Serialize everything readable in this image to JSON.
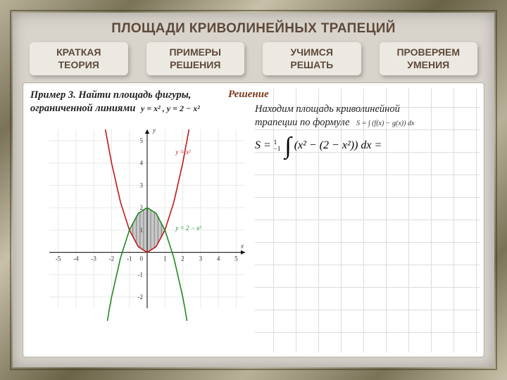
{
  "title": "ПЛОЩАДИ КРИВОЛИНЕЙНЫХ ТРАПЕЦИЙ",
  "tabs": [
    {
      "line1": "КРАТКАЯ",
      "line2": "ТЕОРИЯ"
    },
    {
      "line1": "ПРИМЕРЫ",
      "line2": "РЕШЕНИЯ"
    },
    {
      "line1": "УЧИМСЯ",
      "line2": "РЕШАТЬ"
    },
    {
      "line1": "ПРОВЕРЯЕМ",
      "line2": "УМЕНИЯ"
    }
  ],
  "problem": {
    "label": "Пример 3.",
    "text_a": "Найти площадь фигуры,",
    "text_b": "ограниченной линиями",
    "eq": "y = x² ,  y = 2 − x²"
  },
  "solution": {
    "title": "Решение",
    "line1": "Находим площадь криволинейной",
    "line2": "трапеции по формуле",
    "area_formula_small": "S = ∫ (f(x) − g(x)) dx",
    "big_formula_head": "S =",
    "big_formula_upper": "1",
    "big_formula_lower": "−1",
    "big_formula_body": "(x² − (2 − x²)) dx ="
  },
  "chart": {
    "type": "line",
    "xlim": [
      -5.5,
      5.5
    ],
    "ylim": [
      -2.5,
      5.5
    ],
    "xticks": [
      -5,
      -4,
      -3,
      -2,
      -1,
      0,
      1,
      2,
      3,
      4,
      5
    ],
    "yticks": [
      -2,
      -1,
      1,
      2,
      3,
      4,
      5
    ],
    "origin_label": "0",
    "x_axis_label": "x",
    "y_axis_label": "y",
    "series": [
      {
        "name": "y = x²",
        "color": "#c01818",
        "label_pos": [
          1.6,
          4.4
        ],
        "points": [
          [
            -2.35,
            5.5
          ],
          [
            -2,
            4
          ],
          [
            -1.5,
            2.25
          ],
          [
            -1,
            1
          ],
          [
            -0.5,
            0.25
          ],
          [
            0,
            0
          ],
          [
            0.5,
            0.25
          ],
          [
            1,
            1
          ],
          [
            1.5,
            2.25
          ],
          [
            2,
            4
          ],
          [
            2.35,
            5.5
          ]
        ]
      },
      {
        "name": "y = 2 − x²",
        "color": "#1f8a1f",
        "label_pos": [
          1.6,
          1.0
        ],
        "points": [
          [
            -2.9,
            -6.4
          ],
          [
            -2.12,
            -2.5
          ],
          [
            -2,
            -2
          ],
          [
            -1.5,
            -0.25
          ],
          [
            -1,
            1
          ],
          [
            -0.5,
            1.75
          ],
          [
            0,
            2
          ],
          [
            0.5,
            1.75
          ],
          [
            1,
            1
          ],
          [
            1.5,
            -0.25
          ],
          [
            2,
            -2
          ],
          [
            2.12,
            -2.5
          ],
          [
            2.9,
            -6.4
          ]
        ]
      }
    ],
    "shaded_region": {
      "fill": "#c8c8c8",
      "hatch_color": "#555",
      "bounds_x": [
        -1,
        1
      ]
    },
    "axis_color": "#000000",
    "grid_color": "#e9e9e9",
    "tick_fontsize": 9,
    "label_fontsize": 9
  },
  "colors": {
    "heading": "#5e4a3a",
    "solution_title": "#7a3a1c",
    "canvas_bg": "#d8d4cc",
    "tab_bg": "#ece9e2"
  }
}
